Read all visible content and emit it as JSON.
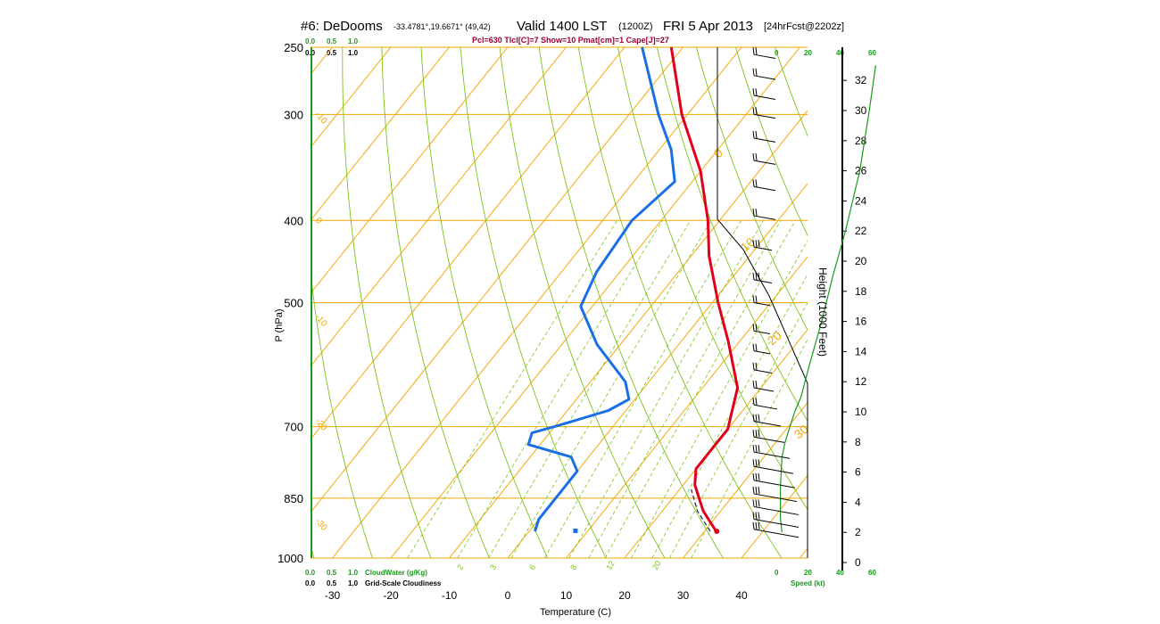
{
  "header": {
    "station": "#6: DeDooms",
    "coords": "-33.4781°,19.6671° (49,42)",
    "valid": "Valid 1400 LST",
    "utc": "(1200Z)",
    "date": "FRI 5 Apr 2013",
    "forecast": "[24hrFcst@2202z]"
  },
  "indices_text": "Pcl=630 Tlcl[C]=7 Show=10 Pmat[cm]=1 Cape[J]=27",
  "colors": {
    "isotherm": "#f2a800",
    "dry_adiabat": "#7fc21a",
    "mixing_ratio": "#7fc21a",
    "temperature": "#e0001a",
    "dewpoint": "#1a6fe6",
    "green_text": "#1a9a1a",
    "index_text": "#9b0038"
  },
  "cloud_scale": {
    "top_green": [
      "0.0",
      "0.5",
      "1.0"
    ],
    "top_black": [
      "0.0",
      "0.5",
      "1.0"
    ],
    "bottom_green": [
      "0.0",
      "0.5",
      "1.0"
    ],
    "bottom_black": [
      "0.0",
      "0.5",
      "1.0"
    ],
    "cloud_water_label": "CloudWater (g/Kg)",
    "cloudiness_label": "Grid-Scale Cloudiness"
  },
  "speed_scale": {
    "top": [
      "0",
      "20",
      "40",
      "60"
    ],
    "bottom": [
      "0",
      "20",
      "40",
      "60"
    ],
    "label": "Speed (kt)"
  },
  "chart_data": {
    "type": "skew-t",
    "xlabel": "Temperature (C)",
    "ylabel": "P (hPa)",
    "y2label": "Height (1000 Feet)",
    "xlim": [
      -34,
      36
    ],
    "ylim": [
      1000,
      250
    ],
    "x_ticks": [
      "-30",
      "-20",
      "-10",
      "0",
      "10",
      "20",
      "30",
      "40"
    ],
    "p_ticks": [
      {
        "p": 250,
        "label": "250"
      },
      {
        "p": 300,
        "label": "300"
      },
      {
        "p": 400,
        "label": "400"
      },
      {
        "p": 500,
        "label": "500"
      },
      {
        "p": 700,
        "label": "700"
      },
      {
        "p": 850,
        "label": "850"
      },
      {
        "p": 1000,
        "label": "1000"
      }
    ],
    "isotherm_labels": [
      {
        "t": 0,
        "label": "0"
      },
      {
        "t": 10,
        "label": "10"
      },
      {
        "t": 20,
        "label": "20"
      },
      {
        "t": 30,
        "label": "30"
      }
    ],
    "dry_adiabat_labels": [
      {
        "label": "-10",
        "p": 300
      },
      {
        "label": "0",
        "p": 400
      },
      {
        "label": "-10",
        "p": 520
      },
      {
        "label": "-20",
        "p": 690
      },
      {
        "label": "-30",
        "p": 905
      }
    ],
    "mixing_ratio_labels": [
      "2",
      "3",
      "6",
      "8",
      "12",
      "20"
    ],
    "height_ticks": [
      "0",
      "2",
      "4",
      "6",
      "8",
      "10",
      "12",
      "14",
      "16",
      "18",
      "20",
      "22",
      "24",
      "26",
      "28",
      "30",
      "32"
    ],
    "temperature": [
      {
        "p": 930,
        "t": 32
      },
      {
        "p": 880,
        "t": 27
      },
      {
        "p": 820,
        "t": 22
      },
      {
        "p": 785,
        "t": 20
      },
      {
        "p": 735,
        "t": 20
      },
      {
        "p": 705,
        "t": 20
      },
      {
        "p": 630,
        "t": 16
      },
      {
        "p": 555,
        "t": 8
      },
      {
        "p": 500,
        "t": 1
      },
      {
        "p": 440,
        "t": -7
      },
      {
        "p": 400,
        "t": -12
      },
      {
        "p": 350,
        "t": -20
      },
      {
        "p": 300,
        "t": -31
      },
      {
        "p": 250,
        "t": -42
      }
    ],
    "dewpoint": [
      {
        "p": 930,
        "t": 1
      },
      {
        "p": 900,
        "t": 0
      },
      {
        "p": 840,
        "t": 0
      },
      {
        "p": 790,
        "t": 0
      },
      {
        "p": 760,
        "t": -3
      },
      {
        "p": 735,
        "t": -12
      },
      {
        "p": 712,
        "t": -13
      },
      {
        "p": 700,
        "t": -10
      },
      {
        "p": 670,
        "t": -3
      },
      {
        "p": 650,
        "t": -1
      },
      {
        "p": 620,
        "t": -4
      },
      {
        "p": 560,
        "t": -14
      },
      {
        "p": 505,
        "t": -22
      },
      {
        "p": 460,
        "t": -24
      },
      {
        "p": 400,
        "t": -25
      },
      {
        "p": 360,
        "t": -23
      },
      {
        "p": 330,
        "t": -28
      },
      {
        "p": 300,
        "t": -35
      },
      {
        "p": 250,
        "t": -47
      }
    ],
    "parcel": [
      {
        "p": 930,
        "t": 31
      },
      {
        "p": 880,
        "t": 26
      },
      {
        "p": 830,
        "t": 22
      }
    ],
    "surface_temp_marker": {
      "p": 930,
      "t": 31.5
    },
    "surface_dew_marker": {
      "p": 930,
      "t": 8
    },
    "wind_speed_profile": [
      {
        "h": 2,
        "s": 3
      },
      {
        "h": 3,
        "s": 2
      },
      {
        "h": 5,
        "s": 2
      },
      {
        "h": 7,
        "s": 3
      },
      {
        "h": 8,
        "s": 5
      },
      {
        "h": 9,
        "s": 8
      },
      {
        "h": 10,
        "s": 11
      },
      {
        "h": 11,
        "s": 15
      },
      {
        "h": 13,
        "s": 20
      },
      {
        "h": 16,
        "s": 28
      },
      {
        "h": 19,
        "s": 35
      },
      {
        "h": 22,
        "s": 43
      },
      {
        "h": 26,
        "s": 52
      },
      {
        "h": 30,
        "s": 58
      },
      {
        "h": 33,
        "s": 62
      }
    ],
    "wind_barbs": [
      {
        "p": 255,
        "len": 24,
        "n": 2
      },
      {
        "p": 270,
        "len": 24,
        "n": 2
      },
      {
        "p": 285,
        "len": 24,
        "n": 2
      },
      {
        "p": 300,
        "len": 24,
        "n": 2
      },
      {
        "p": 320,
        "len": 24,
        "n": 2
      },
      {
        "p": 340,
        "len": 24,
        "n": 2
      },
      {
        "p": 365,
        "len": 24,
        "n": 2
      },
      {
        "p": 395,
        "len": 24,
        "n": 2
      },
      {
        "p": 430,
        "len": 20,
        "n": 3
      },
      {
        "p": 470,
        "len": 20,
        "n": 3
      },
      {
        "p": 500,
        "len": 18,
        "n": 2
      },
      {
        "p": 540,
        "len": 18,
        "n": 2
      },
      {
        "p": 570,
        "len": 18,
        "n": 2
      },
      {
        "p": 600,
        "len": 20,
        "n": 2
      },
      {
        "p": 630,
        "len": 22,
        "n": 2
      },
      {
        "p": 660,
        "len": 26,
        "n": 2
      },
      {
        "p": 690,
        "len": 30,
        "n": 3
      },
      {
        "p": 720,
        "len": 34,
        "n": 3
      },
      {
        "p": 750,
        "len": 40,
        "n": 3
      },
      {
        "p": 780,
        "len": 44,
        "n": 3
      },
      {
        "p": 810,
        "len": 46,
        "n": 3
      },
      {
        "p": 840,
        "len": 48,
        "n": 3
      },
      {
        "p": 870,
        "len": 50,
        "n": 3
      },
      {
        "p": 900,
        "len": 50,
        "n": 3
      },
      {
        "p": 925,
        "len": 50,
        "n": 3
      }
    ]
  }
}
